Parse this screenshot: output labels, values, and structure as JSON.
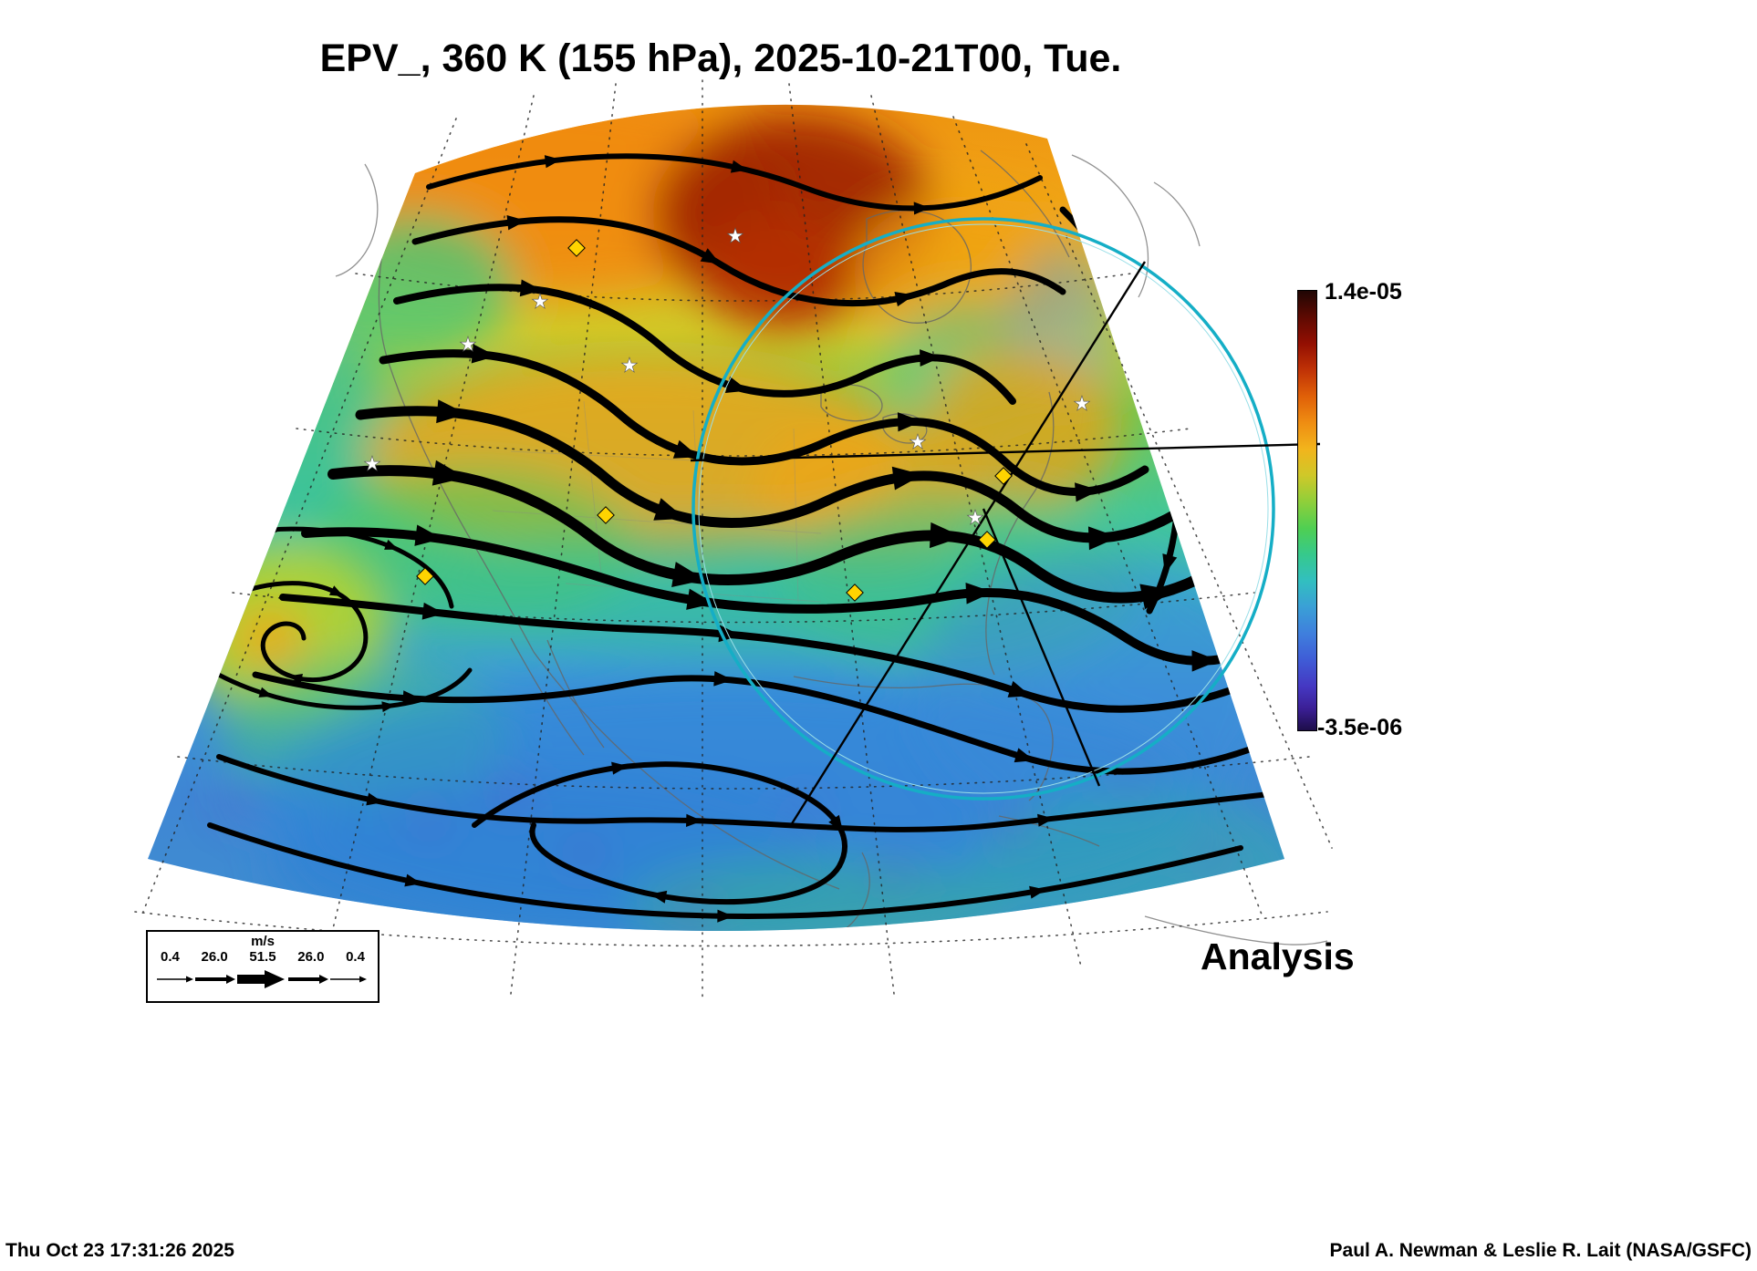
{
  "title": "EPV_, 360 K (155 hPa), 2025-10-21T00, Tue.",
  "map": {
    "star_glyph": "★"
  },
  "colorbar": {
    "max_label": "1.4e-05",
    "min_label": "-3.5e-06"
  },
  "wind_legend": {
    "units": "m/s",
    "tick_labels": [
      "0.4",
      "26.0",
      "51.5",
      "26.0",
      "0.4"
    ]
  },
  "analysis_label": "Analysis",
  "footer": {
    "timestamp": "Thu Oct 23 17:31:26 2025",
    "credit": "Paul A. Newman & Leslie R. Lait (NASA/GSFC)"
  },
  "chart_data": {
    "type": "heatmap",
    "title": "EPV_, 360 K (155 hPa), 2025-10-21T00, Tue.",
    "field": "EPV_",
    "isentropic_level": "360 K",
    "pressure_level": "155 hPa",
    "valid_time": "2025-10-21T00",
    "valid_day": "Tue.",
    "analysis_type": "Analysis",
    "colorbar": {
      "orientation": "vertical",
      "position": "right",
      "min": -3.5e-06,
      "max": 1.4e-05,
      "min_label": "-3.5e-06",
      "max_label": "1.4e-05",
      "scale": "dark-purple/blue (low) through green to orange/dark-red (high)"
    },
    "wind_speed_legend_m_s": [
      0.4,
      26.0,
      51.5,
      26.0,
      0.4
    ],
    "overlays": [
      "streamlines-with-arrowheads",
      "dotted-graticule",
      "coastlines-and-state-borders",
      "teal-range-circle",
      "black-azimuth-lines",
      "yellow-diamond-station-markers",
      "white-star-station-markers"
    ],
    "field_pattern": "High EPV (orange/dark-red maximum) over northern/central Canada; orange ridge band across the central United States; low EPV (blue/purple) across the south and Gulf/Caribbean; cyclonic spiral in yellow-green over the U.S. Southwest; generally westerly streamline flow with a ridge-trough wave pattern"
  }
}
